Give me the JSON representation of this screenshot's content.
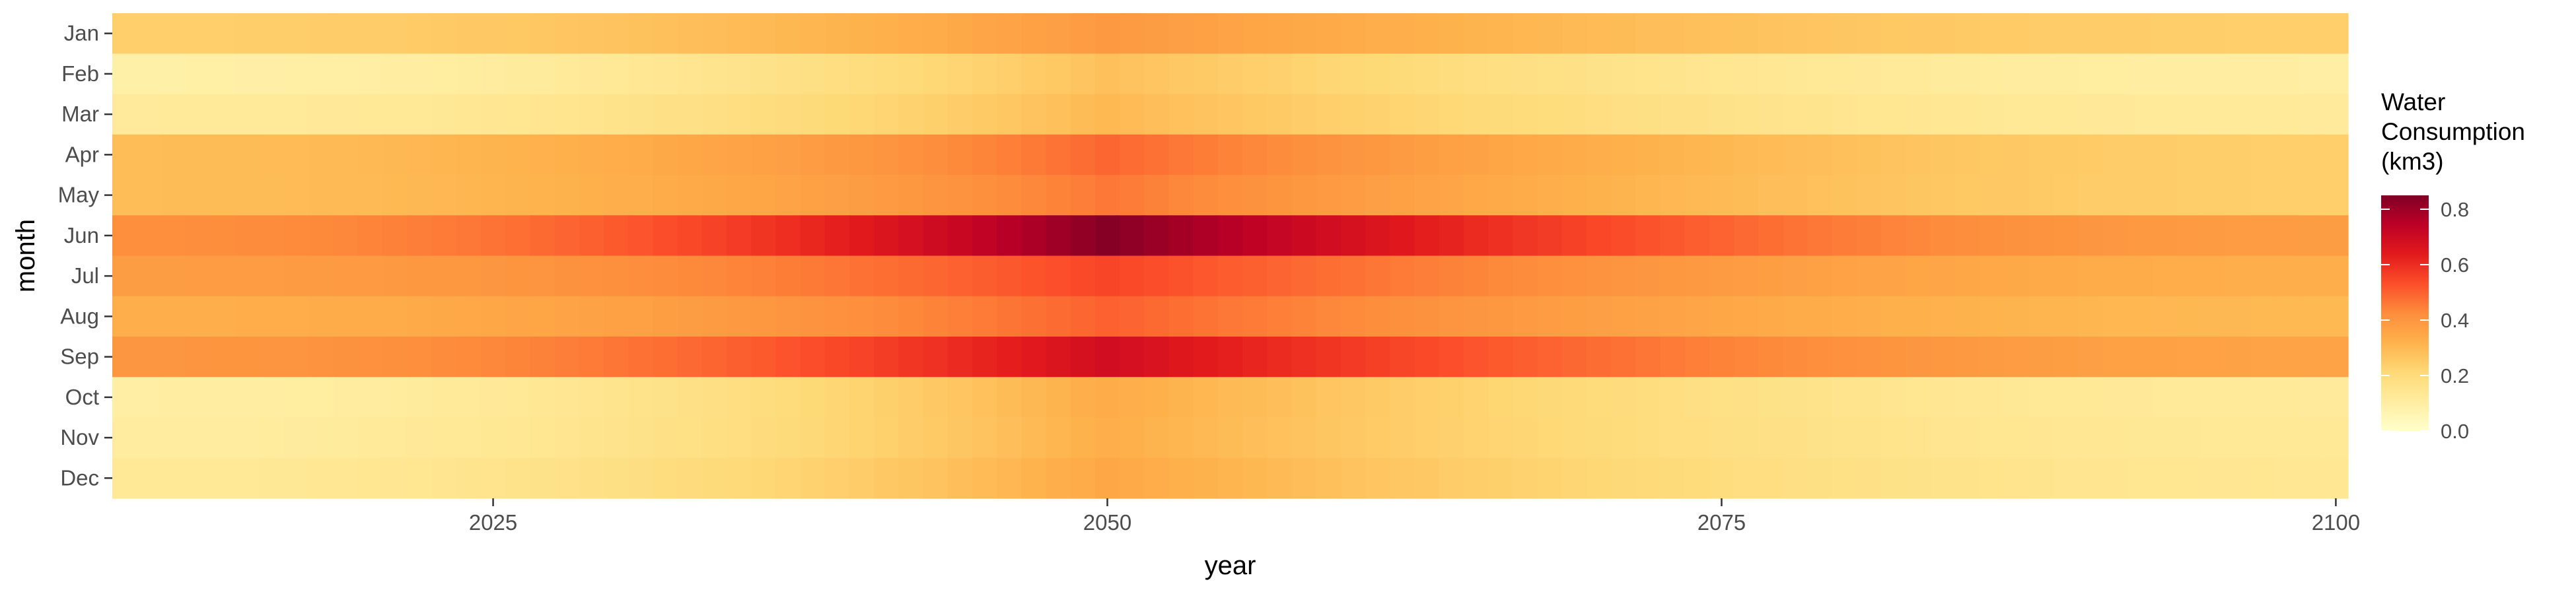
{
  "chart_data": {
    "type": "heatmap",
    "title": "",
    "xlabel": "year",
    "ylabel": "month",
    "x_range": [
      2010,
      2100
    ],
    "x_ticks": [
      "2025",
      "2050",
      "2075",
      "2100"
    ],
    "y_categories": [
      "Jan",
      "Feb",
      "Mar",
      "Apr",
      "May",
      "Jun",
      "Jul",
      "Aug",
      "Sep",
      "Oct",
      "Nov",
      "Dec"
    ],
    "colorbar": {
      "title_lines": [
        "Water",
        "Consumption",
        "(km3)"
      ],
      "range": [
        0,
        0.85
      ],
      "ticks": [
        "0.0",
        "0.2",
        "0.4",
        "0.6",
        "0.8"
      ],
      "palette": [
        "#ffffcc",
        "#ffeda0",
        "#fed976",
        "#feb24c",
        "#fd8d3c",
        "#fc4e2a",
        "#e31a1c",
        "#bd0026",
        "#800026"
      ]
    },
    "peak_year": 2050,
    "monthly_values_at_2010": [
      0.24,
      0.09,
      0.12,
      0.29,
      0.29,
      0.42,
      0.38,
      0.33,
      0.4,
      0.1,
      0.11,
      0.13
    ],
    "monthly_values_at_2050": [
      0.39,
      0.28,
      0.3,
      0.49,
      0.46,
      0.84,
      0.55,
      0.5,
      0.69,
      0.34,
      0.33,
      0.35
    ],
    "monthly_values_at_2100": [
      0.24,
      0.1,
      0.12,
      0.24,
      0.24,
      0.38,
      0.33,
      0.3,
      0.36,
      0.12,
      0.13,
      0.14
    ],
    "grid": false,
    "legend_position": "right"
  }
}
